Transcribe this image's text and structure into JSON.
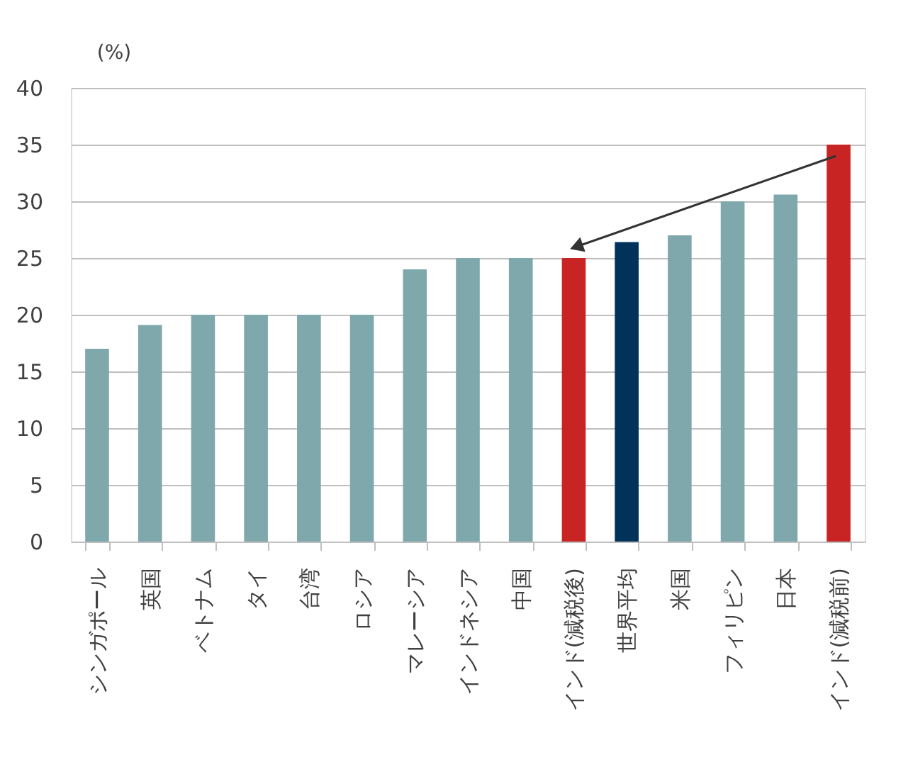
{
  "chart_data": {
    "type": "bar",
    "ylabel": "(%)",
    "categories": [
      "シンガポール",
      "英国",
      "ベトナム",
      "タイ",
      "台湾",
      "ロシア",
      "マレーシア",
      "インドネシア",
      "中国",
      "インド(減税後)",
      "世界平均",
      "米国",
      "フィリピン",
      "日本",
      "インド(減税前)"
    ],
    "values": [
      17,
      19.1,
      20,
      20,
      20,
      20,
      24,
      25,
      25,
      25,
      26.4,
      27,
      30,
      30.6,
      35
    ],
    "colors": [
      "#7fa8ad",
      "#7fa8ad",
      "#7fa8ad",
      "#7fa8ad",
      "#7fa8ad",
      "#7fa8ad",
      "#7fa8ad",
      "#7fa8ad",
      "#7fa8ad",
      "#c82423",
      "#00325a",
      "#7fa8ad",
      "#7fa8ad",
      "#7fa8ad",
      "#c82423"
    ],
    "ylim": [
      0,
      40
    ],
    "yticks": [
      0,
      5,
      10,
      15,
      20,
      25,
      30,
      35,
      40
    ],
    "grid": "y"
  }
}
